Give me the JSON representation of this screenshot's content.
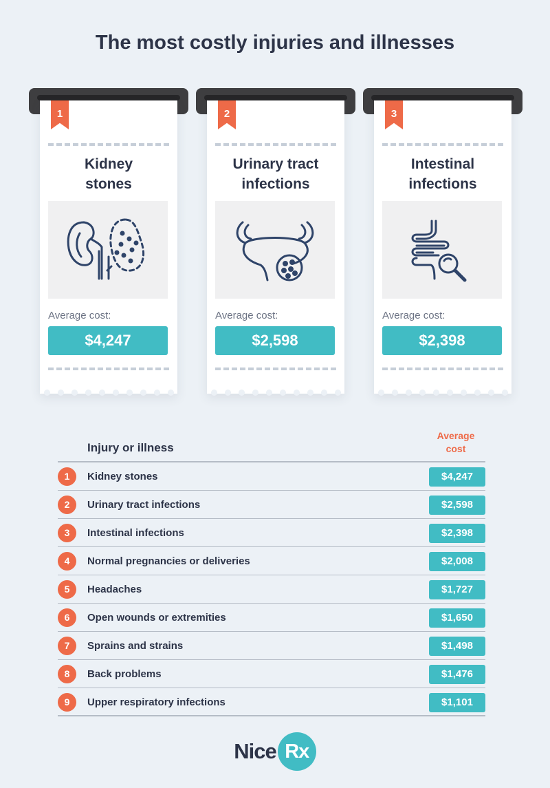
{
  "title": "The most costly injuries and illnesses",
  "cards": [
    {
      "rank": "1",
      "name_line1": "Kidney",
      "name_line2": "stones",
      "icon": "kidney-icon",
      "avg_label": "Average cost:",
      "price": "$4,247"
    },
    {
      "rank": "2",
      "name_line1": "Urinary tract",
      "name_line2": "infections",
      "icon": "bladder-icon",
      "avg_label": "Average cost:",
      "price": "$2,598"
    },
    {
      "rank": "3",
      "name_line1": "Intestinal",
      "name_line2": "infections",
      "icon": "intestine-magnifier-icon",
      "avg_label": "Average cost:",
      "price": "$2,398"
    }
  ],
  "table": {
    "header_name": "Injury or illness",
    "header_cost_line1": "Average",
    "header_cost_line2": "cost",
    "rows": [
      {
        "rank": "1",
        "name": "Kidney stones",
        "cost": "$4,247"
      },
      {
        "rank": "2",
        "name": "Urinary tract infections",
        "cost": "$2,598"
      },
      {
        "rank": "3",
        "name": "Intestinal infections",
        "cost": "$2,398"
      },
      {
        "rank": "4",
        "name": "Normal pregnancies or deliveries",
        "cost": "$2,008"
      },
      {
        "rank": "5",
        "name": "Headaches",
        "cost": "$1,727"
      },
      {
        "rank": "6",
        "name": "Open wounds or extremities",
        "cost": "$1,650"
      },
      {
        "rank": "7",
        "name": "Sprains and strains",
        "cost": "$1,498"
      },
      {
        "rank": "8",
        "name": "Back problems",
        "cost": "$1,476"
      },
      {
        "rank": "9",
        "name": "Upper respiratory infections",
        "cost": "$1,101"
      }
    ]
  },
  "logo": {
    "part1": "Nice",
    "part2": "Rx"
  },
  "colors": {
    "accent": "#ee6a48",
    "teal": "#41bcc4",
    "text": "#2d3448",
    "background": "#ecf1f6"
  }
}
